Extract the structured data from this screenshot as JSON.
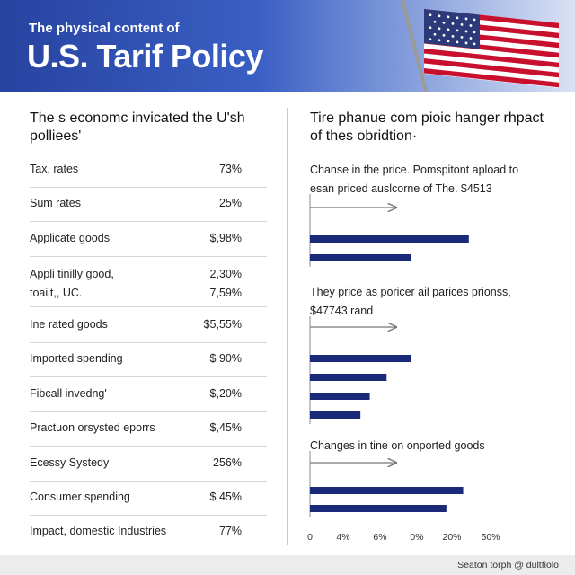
{
  "header": {
    "subtitle": "The physical content of",
    "title": "U.S. Tarif Policy"
  },
  "left_panel": {
    "heading": "The s economc invicated the U'sh polliees'",
    "rows": [
      {
        "label": "Tax, rates",
        "value": "73%"
      },
      {
        "label": "Sum rates",
        "value": "25%"
      },
      {
        "label": "Applicate goods",
        "value": "$,98%"
      },
      {
        "label": "Appli tinilly good,",
        "label2": "toaiit,, UC.",
        "value": "2,30%",
        "value2": "7,59%"
      },
      {
        "label": "Ine rated goods",
        "value": "$5,55%"
      },
      {
        "label": "Imported spending",
        "value": "$ 90%"
      },
      {
        "label": "Fibcall invedng'",
        "value": "$,20%"
      },
      {
        "label": "Practuon orsysted eporrs",
        "value": "$,45%"
      },
      {
        "label": "Ecessy Systedy",
        "value": "256%"
      },
      {
        "label": "Consumer spending",
        "value": "$ 45%"
      },
      {
        "label": "Impact, domestic Industries",
        "value": "77%"
      }
    ]
  },
  "right_panel": {
    "heading": "Tire phanue com pioic hanger rhpact of thes obridtion·",
    "sections": [
      {
        "text": "Chanse in the price. Pomspitont apload to esan priced auslcorne of The. $4513"
      },
      {
        "text": "They price as poricer ail parices prionss, $47743 rand"
      },
      {
        "text": "Changes in tine on onported goods"
      }
    ]
  },
  "chart_data": {
    "type": "bar",
    "orientation": "horizontal",
    "title": "",
    "xlabel": "",
    "ylabel": "",
    "x_tick_labels": [
      "0",
      "4%",
      "6%",
      "0%",
      "20%",
      "50%"
    ],
    "xlim": [
      0,
      1
    ],
    "color": "#1b2a78",
    "groups": [
      {
        "values": [
          0.85,
          0.54
        ]
      },
      {
        "values": [
          0.54,
          0.41,
          0.32,
          0.27
        ]
      },
      {
        "values": [
          0.82,
          0.73
        ]
      }
    ]
  },
  "footer": {
    "credit": "Seaton torph @ dultfiolo"
  },
  "colors": {
    "banner_start": "#2743a0",
    "banner_end": "#d9e1f4",
    "bar": "#1b2a78",
    "arrow": "#777777"
  }
}
